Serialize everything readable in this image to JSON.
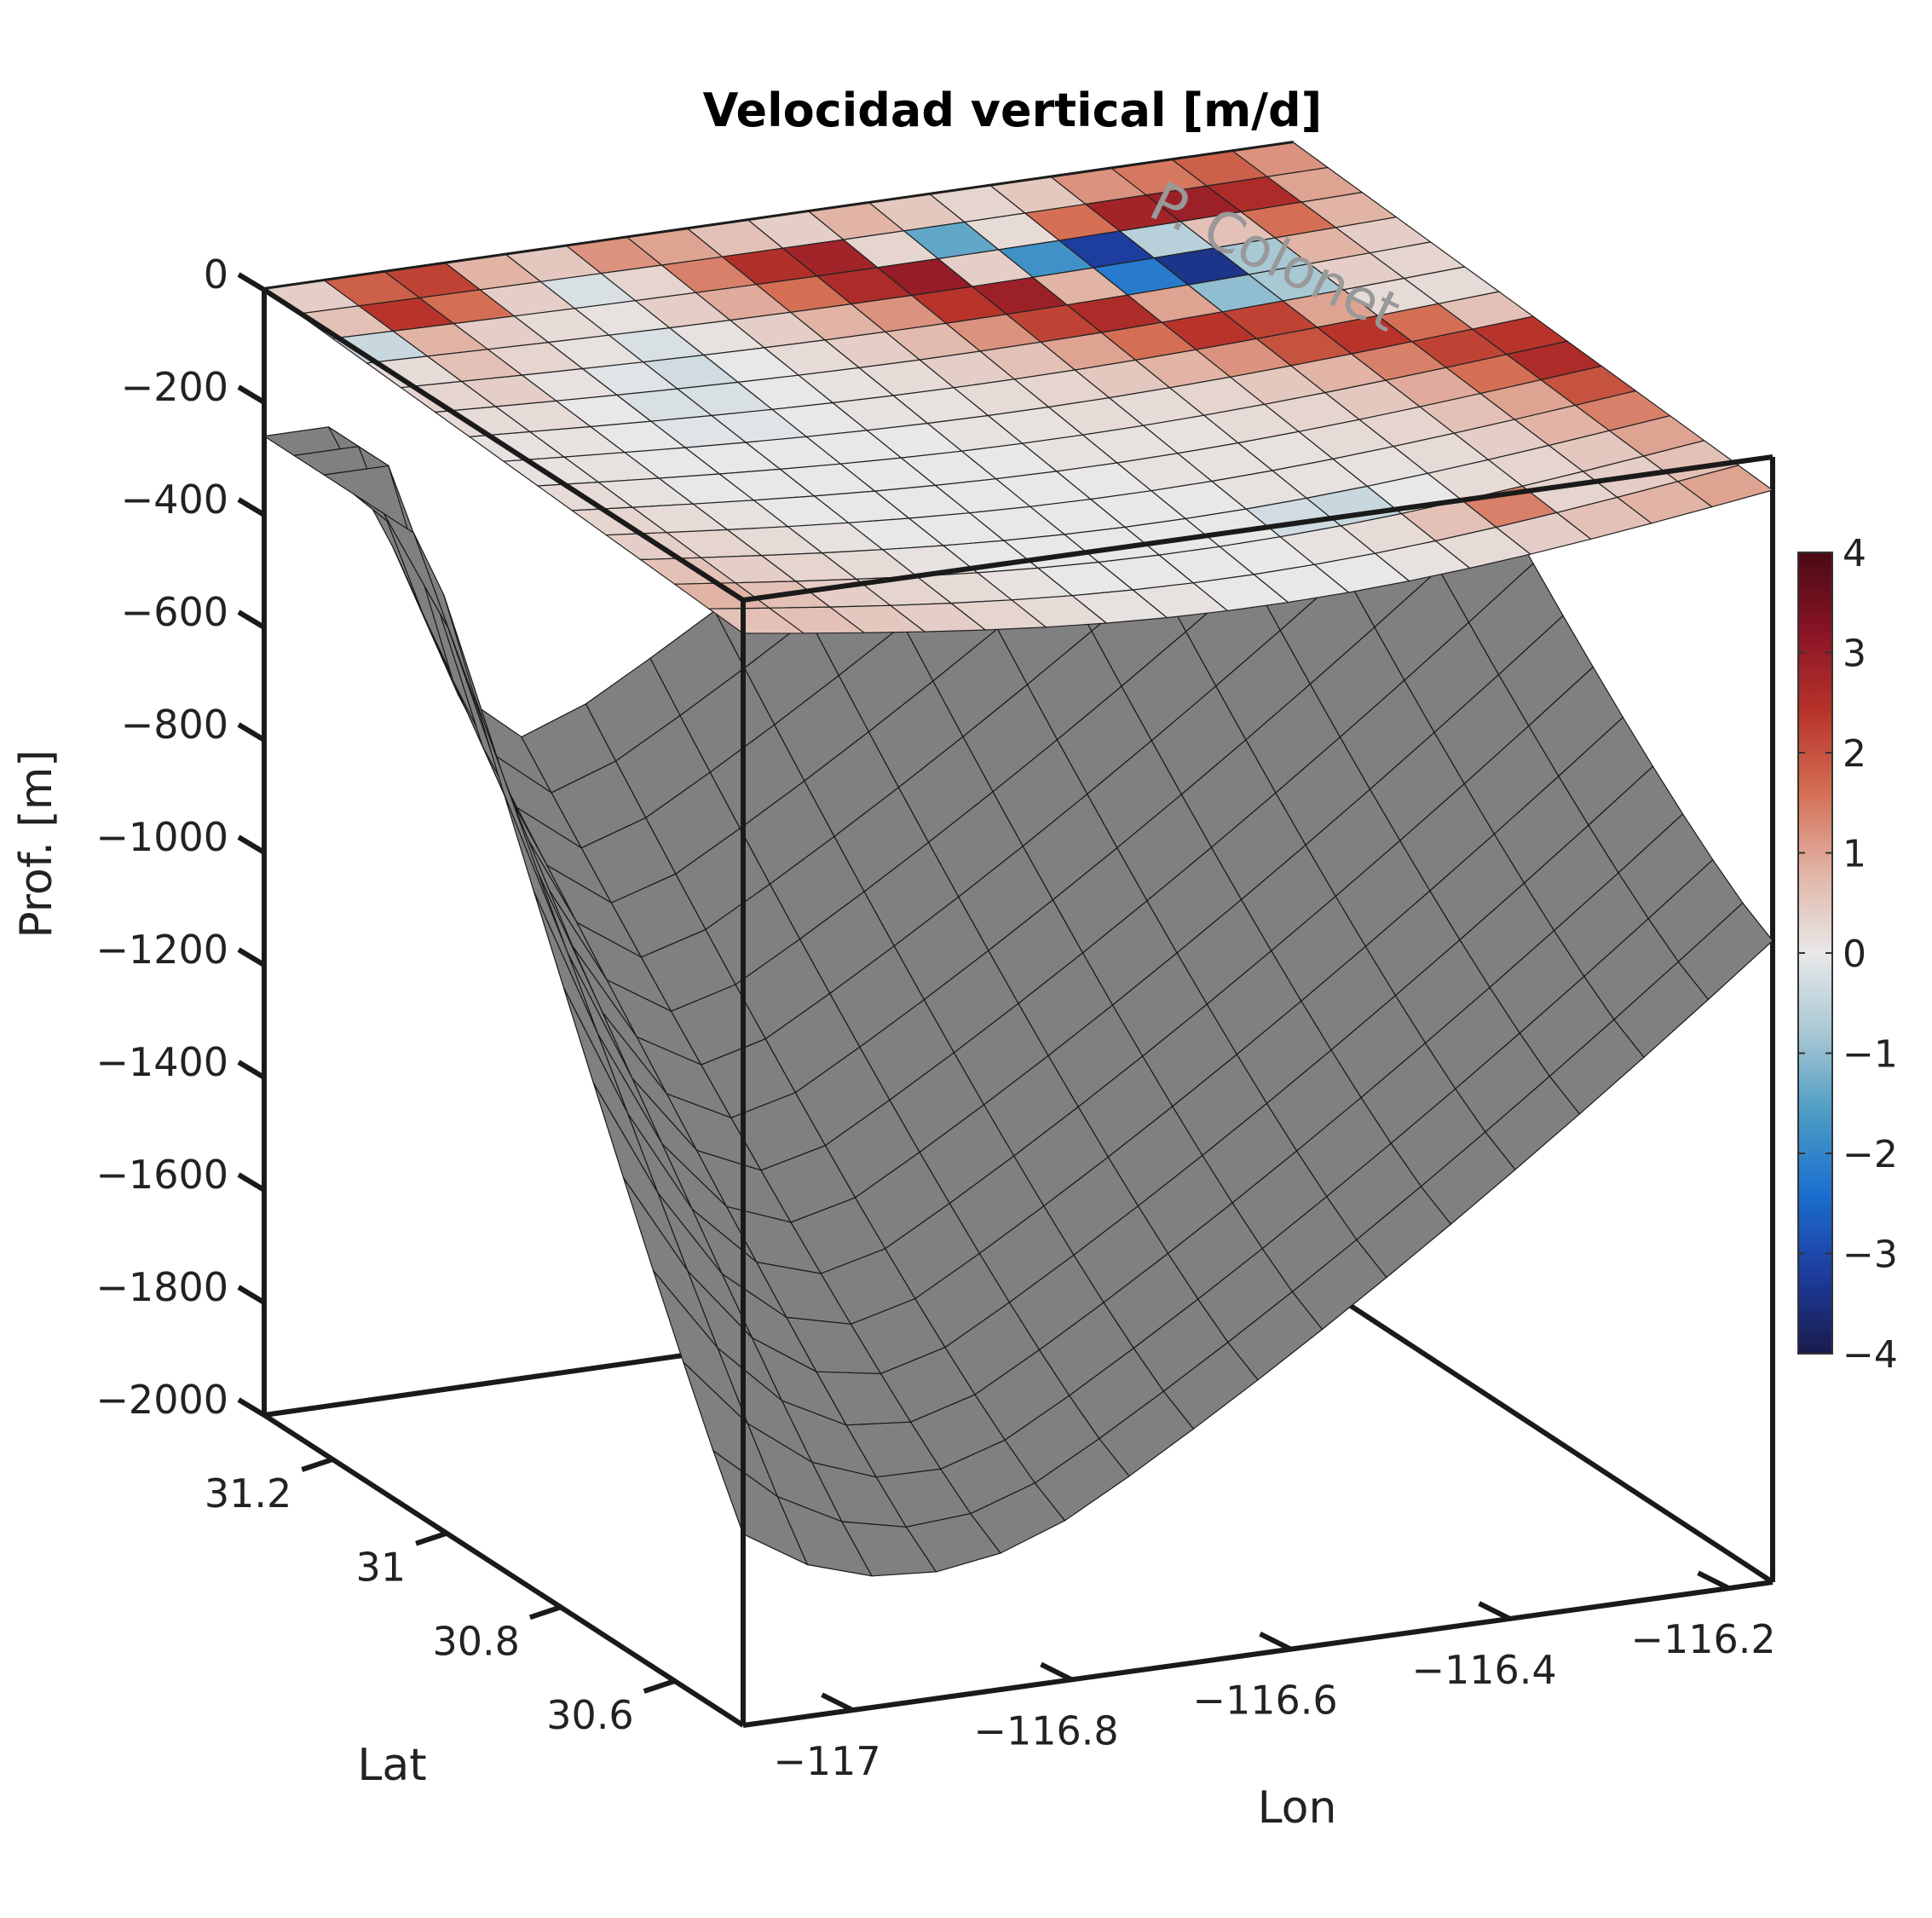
{
  "chart_data": {
    "type": "surface3d",
    "title": "Velocidad vertical [m/d]",
    "xlabel": "Lon",
    "ylabel": "Lat",
    "zlabel": "Prof. [m]",
    "annotation": "P. Colonet",
    "x_ticks": [
      -117,
      -116.8,
      -116.6,
      -116.4,
      -116.2
    ],
    "x_tick_labels": [
      "−117",
      "−116.8",
      "−116.6",
      "−116.4",
      "−116.2"
    ],
    "y_ticks": [
      30.6,
      30.8,
      31,
      31.2
    ],
    "y_tick_labels": [
      "30.6",
      "30.8",
      "31",
      "31.2"
    ],
    "z_ticks": [
      0,
      -200,
      -400,
      -600,
      -800,
      -1000,
      -1200,
      -1400,
      -1600,
      -1800,
      -2000
    ],
    "z_tick_labels": [
      "0",
      "−200",
      "−400",
      "−600",
      "−800",
      "−1000",
      "−1200",
      "−1400",
      "−1600",
      "−1800",
      "−2000"
    ],
    "zlim": [
      -2000,
      0
    ],
    "colorbar": {
      "range": [
        -4,
        4
      ],
      "ticks": [
        4,
        3,
        2,
        1,
        0,
        -1,
        -2,
        -3,
        -4
      ],
      "tick_labels": [
        "4",
        "3",
        "2",
        "1",
        "0",
        "−1",
        "−2",
        "−3",
        "−4"
      ],
      "colormap": [
        "#191b4b",
        "#1d3d9f",
        "#1a6fcf",
        "#4c9cc4",
        "#a8c8d4",
        "#e8e8e8",
        "#e2b4a6",
        "#d46f55",
        "#b8342a",
        "#8a1426",
        "#4a0a14"
      ]
    },
    "surface_color": "#808080",
    "velocity_slice": {
      "depth": 0,
      "grid_size": [
        17,
        14
      ],
      "values": [
        [
          0.4,
          1.8,
          2.2,
          0.8,
          0.5,
          1.2,
          1.0,
          0.6,
          0.4,
          0.8,
          0.5,
          0.3,
          0.5,
          1.2,
          1.5,
          1.8,
          1.2
        ],
        [
          0.6,
          2.4,
          1.6,
          0.4,
          -0.2,
          0.3,
          1.4,
          2.5,
          2.8,
          0.3,
          -1.4,
          0.2,
          1.6,
          2.8,
          2.9,
          2.6,
          1.0
        ],
        [
          -0.4,
          0.8,
          0.4,
          0.2,
          0.1,
          0.4,
          0.9,
          1.6,
          2.6,
          3.0,
          0.4,
          -1.8,
          -3.2,
          -0.6,
          0.6,
          1.6,
          0.8
        ],
        [
          0.2,
          0.6,
          0.3,
          0.1,
          -0.2,
          0.1,
          0.4,
          0.8,
          1.2,
          2.4,
          2.9,
          0.8,
          -2.2,
          -3.4,
          -0.8,
          0.8,
          0.4
        ],
        [
          0.3,
          0.4,
          0.1,
          -0.1,
          -0.3,
          0.0,
          0.2,
          0.4,
          0.7,
          1.2,
          2.2,
          2.6,
          1.0,
          -1.0,
          -0.8,
          0.4,
          0.3
        ],
        [
          0.2,
          0.2,
          0.0,
          -0.2,
          -0.2,
          0.0,
          0.1,
          0.2,
          0.4,
          0.6,
          1.0,
          1.6,
          2.4,
          2.2,
          1.0,
          0.2,
          0.2
        ],
        [
          0.1,
          0.1,
          0.0,
          -0.1,
          -0.1,
          0.0,
          0.1,
          0.1,
          0.2,
          0.3,
          0.5,
          0.8,
          1.2,
          2.0,
          2.4,
          1.6,
          0.6
        ],
        [
          0.1,
          0.1,
          0.0,
          0.0,
          0.0,
          0.0,
          0.0,
          0.1,
          0.1,
          0.2,
          0.2,
          0.3,
          0.5,
          0.8,
          1.4,
          2.2,
          2.4
        ],
        [
          0.2,
          0.1,
          0.0,
          0.0,
          0.0,
          0.0,
          0.0,
          0.0,
          0.1,
          0.1,
          0.1,
          0.2,
          0.3,
          0.5,
          0.9,
          1.6,
          2.6
        ],
        [
          0.3,
          0.2,
          0.1,
          0.0,
          0.0,
          0.0,
          0.0,
          0.0,
          0.0,
          0.1,
          0.1,
          0.1,
          0.2,
          0.3,
          0.6,
          1.0,
          2.0
        ],
        [
          0.4,
          0.3,
          0.2,
          0.1,
          0.0,
          0.0,
          0.0,
          0.0,
          0.0,
          0.0,
          0.1,
          0.1,
          0.1,
          0.2,
          0.4,
          0.8,
          1.4
        ],
        [
          0.6,
          0.4,
          0.3,
          0.2,
          0.1,
          0.0,
          0.0,
          0.0,
          0.0,
          0.0,
          -0.3,
          -0.4,
          0.0,
          0.2,
          0.3,
          0.5,
          1.0
        ],
        [
          0.8,
          0.6,
          0.4,
          0.3,
          0.2,
          0.1,
          0.0,
          0.0,
          0.0,
          0.0,
          0.1,
          0.2,
          0.6,
          1.4,
          0.3,
          0.4,
          0.6
        ],
        [
          0.6,
          0.6,
          0.5,
          0.4,
          0.3,
          0.2,
          0.1,
          0.1,
          0.0,
          0.0,
          0.0,
          0.1,
          0.2,
          0.4,
          0.6,
          0.8,
          1.0
        ]
      ]
    },
    "bathymetry_grid": {
      "grid_size": [
        17,
        17
      ],
      "description_values_m": "z(lon,lat): deep trough toward southwest corner, rising to ~-600 at northwest and northeast edges",
      "min_depth": -2000,
      "max_depth": -500
    }
  }
}
